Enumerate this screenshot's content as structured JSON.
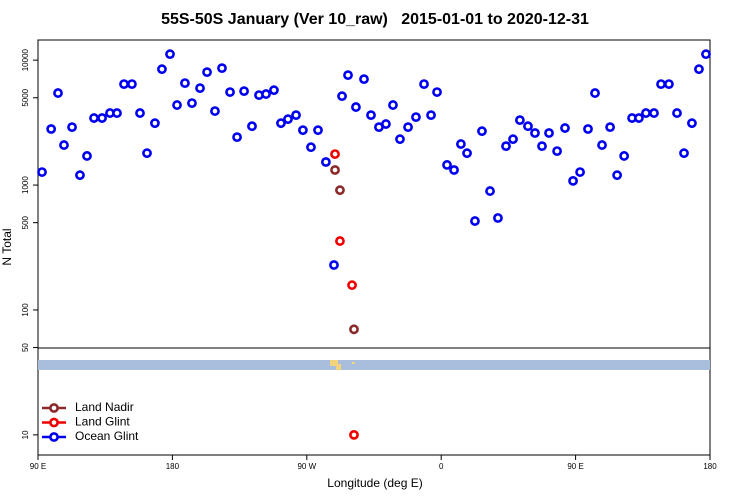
{
  "chart_data": {
    "type": "scatter",
    "title": "55S-50S January (Ver 10_raw)   2015-01-01 to 2020-12-31",
    "x_label": "Longitude (deg E)",
    "y_label": "N Total",
    "y_log": true,
    "xlim": [
      90,
      540
    ],
    "ylim": [
      6.9,
      14500
    ],
    "xticks": [
      {
        "value": 90,
        "label": "90 E"
      },
      180,
      {
        "value": 270,
        "label": "90 W"
      },
      {
        "value": 360,
        "label": "0"
      },
      {
        "value": 450,
        "label": "90 E"
      },
      {
        "value": 540,
        "label": "180"
      }
    ],
    "yticks": [
      10,
      50,
      100,
      500,
      1000,
      5000,
      10000
    ],
    "legend": "bottom-left",
    "series": [
      {
        "name": "Land Nadir",
        "color": "#8b2a2a",
        "x": [
          288.9,
          292.2,
          301.6
        ],
        "values": [
          1320,
          910,
          70
        ]
      },
      {
        "name": "Land Glint",
        "color": "#ee0000",
        "x": [
          288.9,
          292.2,
          300.3,
          301.6
        ],
        "values": [
          1770,
          356,
          158,
          10
        ]
      },
      {
        "name": "Ocean Glint",
        "color": "#0000ee",
        "x": [
          92.7,
          98.8,
          103.4,
          107.4,
          112.8,
          118.1,
          122.8,
          127.5,
          132.9,
          138.2,
          142.9,
          147.6,
          152.9,
          158.3,
          163,
          168.3,
          173,
          178.4,
          183.1,
          188.4,
          193.1,
          198.5,
          203.2,
          208.5,
          213.2,
          218.6,
          223.3,
          228,
          233.3,
          238,
          242.7,
          248,
          252.7,
          257.4,
          262.8,
          267.4,
          272.8,
          277.5,
          282.8,
          288.2,
          293.6,
          297.6,
          302.9,
          308.3,
          313,
          318.3,
          323,
          327.7,
          332.4,
          337.8,
          343.1,
          348.5,
          353.2,
          357.2,
          363.9,
          368.6,
          373.2,
          377.3,
          382.6,
          387.3,
          392.7,
          398,
          403.4,
          408.1,
          412.7,
          418.1,
          422.8,
          427.5,
          432.2,
          437.6,
          442.9,
          448.3,
          453,
          458.3,
          463,
          467.7,
          473.1,
          477.8,
          482.5,
          487.8,
          492.4,
          497.1,
          502.5,
          507.2,
          512.5,
          517.9,
          522.6,
          527.9,
          532.6,
          537.3
        ],
        "values": [
          1270,
          2810,
          5450,
          2090,
          2910,
          1200,
          1710,
          3440,
          3440,
          3770,
          3770,
          6430,
          6430,
          3770,
          1800,
          3130,
          8470,
          11170,
          4370,
          6550,
          4530,
          5970,
          8020,
          3910,
          8630,
          5550,
          2420,
          5650,
          2960,
          5250,
          5350,
          5750,
          3130,
          3370,
          3630,
          2750,
          2010,
          2750,
          1530,
          229,
          5150,
          7590,
          4210,
          7050,
          3630,
          2910,
          3080,
          4370,
          2330,
          2910,
          3500,
          6430,
          3630,
          5550,
          1450,
          1320,
          2130,
          1800,
          515,
          2700,
          895,
          545,
          2050,
          2330,
          3310,
          2960,
          2610,
          2050,
          2610,
          1870,
          2860,
          1080,
          1270,
          2810,
          5450,
          2090,
          2910,
          1200,
          1710,
          3440,
          3440,
          3770,
          3770,
          6430,
          6430,
          3770,
          1800,
          3130,
          8470,
          11170
        ]
      }
    ]
  }
}
